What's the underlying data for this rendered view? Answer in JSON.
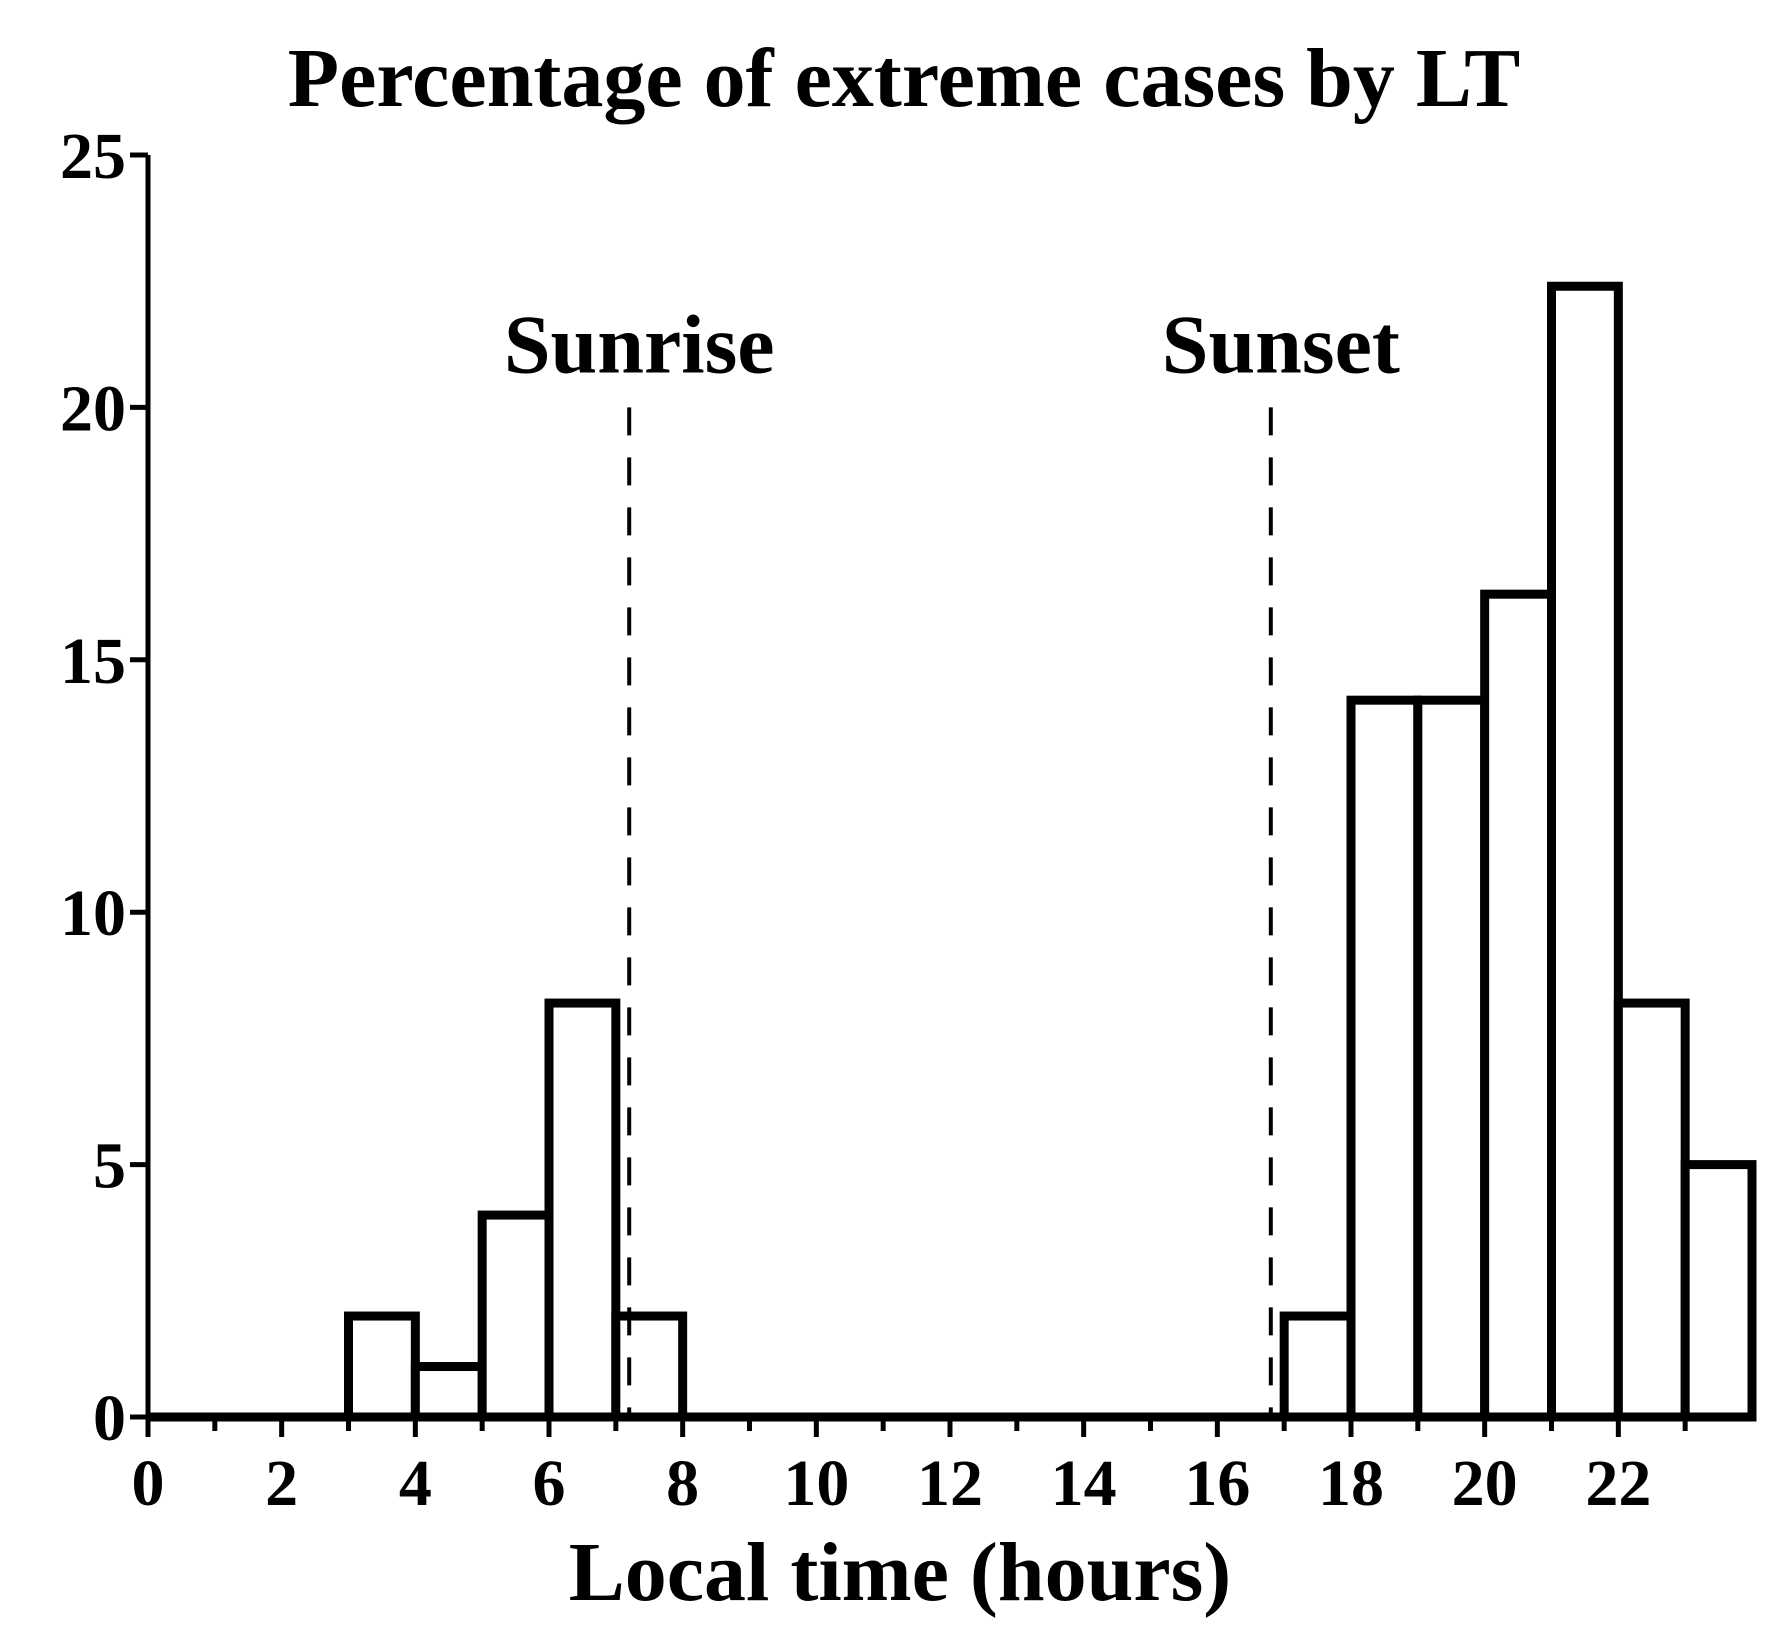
{
  "chart_data": {
    "type": "bar",
    "title": "Percentage of extreme cases by LT",
    "xlabel": "Local time (hours)",
    "ylabel": "",
    "xlim": [
      0,
      24
    ],
    "ylim": [
      0,
      25
    ],
    "xticks_major": [
      0,
      2,
      4,
      6,
      8,
      10,
      12,
      14,
      16,
      18,
      20,
      22
    ],
    "xtick_labels": [
      "0",
      "2",
      "4",
      "6",
      "8",
      "10",
      "12",
      "14",
      "16",
      "18",
      "20",
      "22"
    ],
    "yticks": [
      0,
      5,
      10,
      15,
      20,
      25
    ],
    "ytick_labels": [
      "0",
      "5",
      "10",
      "15",
      "20",
      "25"
    ],
    "categories": [
      "0",
      "1",
      "2",
      "3",
      "4",
      "5",
      "6",
      "7",
      "8",
      "9",
      "10",
      "11",
      "12",
      "13",
      "14",
      "15",
      "16",
      "17",
      "18",
      "19",
      "20",
      "21",
      "22",
      "23"
    ],
    "values": [
      0,
      0,
      0,
      2,
      1,
      4,
      8.2,
      2,
      0,
      0,
      0,
      0,
      0,
      0,
      0,
      0,
      0,
      2,
      14.2,
      14.2,
      16.3,
      22.4,
      8.2,
      5
    ],
    "annotations": [
      {
        "label": "Sunrise",
        "x": 7.2
      },
      {
        "label": "Sunset",
        "x": 16.8
      }
    ],
    "grid": false,
    "legend": "none"
  },
  "colors": {
    "bar_fill": "#ffffff",
    "bar_edge": "#000000",
    "text": "#000000"
  }
}
